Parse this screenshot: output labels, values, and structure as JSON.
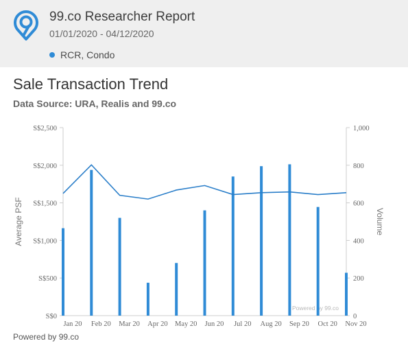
{
  "report": {
    "title": "99.co Researcher Report",
    "date_range": "01/01/2020 - 04/12/2020",
    "filter_label": "RCR, Condo",
    "colors": {
      "accent": "#2f8bd6",
      "header_bg": "#efefef"
    }
  },
  "chart_data": {
    "type": "bar+line",
    "title": "Sale Transaction Trend",
    "subtitle": "Data Source: URA, Realis and 99.co",
    "categories": [
      "Jan 20",
      "Feb 20",
      "Mar 20",
      "Apr 20",
      "May 20",
      "Jun 20",
      "Jul 20",
      "Aug 20",
      "Sep 20",
      "Oct 20",
      "Nov 20"
    ],
    "series": [
      {
        "axis": "right",
        "kind": "bar",
        "values": [
          465,
          775,
          520,
          175,
          280,
          560,
          740,
          795,
          805,
          578,
          228
        ]
      },
      {
        "axis": "left",
        "kind": "line",
        "values": [
          1625,
          2005,
          1600,
          1550,
          1670,
          1730,
          1610,
          1635,
          1645,
          1610,
          1635
        ]
      }
    ],
    "y_left": {
      "label": "Average PSF",
      "range": [
        0,
        2500
      ],
      "ticks": [
        0,
        500,
        1000,
        1500,
        2000,
        2500
      ],
      "tick_labels": [
        "S$0",
        "S$500",
        "S$1,000",
        "S$1,500",
        "S$2,000",
        "S$2,500"
      ]
    },
    "y_right": {
      "label": "Volume",
      "range": [
        0,
        1000
      ],
      "ticks": [
        0,
        200,
        400,
        600,
        800,
        1000
      ],
      "tick_labels": [
        "0",
        "200",
        "400",
        "600",
        "800",
        "1,000"
      ]
    },
    "grid": false,
    "color": "#2f8bd6",
    "watermark": "Powered by 99.co"
  },
  "footer": {
    "text": "Powered by 99.co"
  }
}
